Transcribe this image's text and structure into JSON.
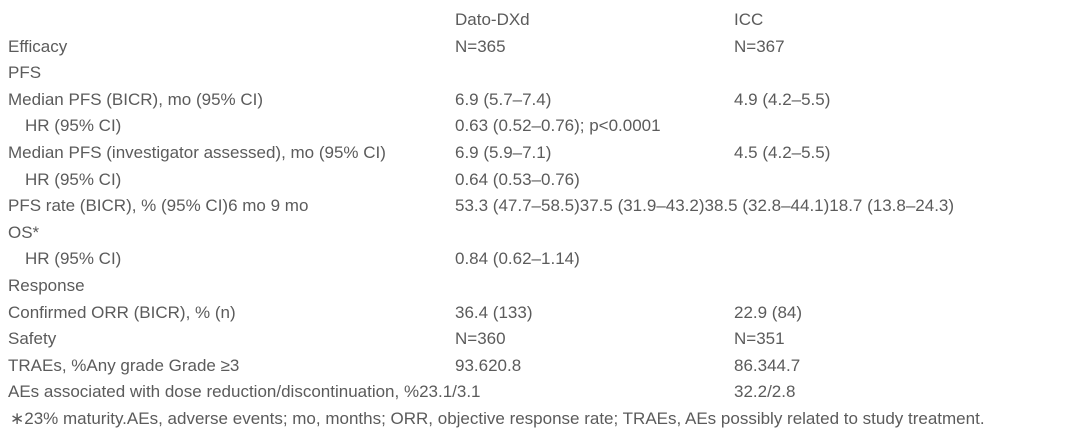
{
  "colors": {
    "background": "#ffffff",
    "text": "#5b5b5b"
  },
  "table": {
    "header": {
      "label": "",
      "dato": "Dato-DXd",
      "icc": "ICC"
    },
    "rows": [
      {
        "label": "Efficacy",
        "dato": "N=365",
        "icc": "N=367"
      },
      {
        "label": "PFS",
        "dato": "",
        "icc": ""
      },
      {
        "label": "Median PFS (BICR), mo (95% CI)",
        "dato": "6.9 (5.7–7.4)",
        "icc": "4.9 (4.2–5.5)"
      },
      {
        "label": "HR (95% CI)",
        "dato": "0.63 (0.52–0.76); p<0.0001",
        "icc": ""
      },
      {
        "label": "Median PFS (investigator assessed), mo (95% CI)",
        "dato": "6.9 (5.9–7.1)",
        "icc": "4.5 (4.2–5.5)"
      },
      {
        "label": "HR (95% CI)",
        "dato": "0.64 (0.53–0.76)",
        "icc": ""
      },
      {
        "label": "PFS rate (BICR), % (95% CI)6 mo 9 mo",
        "dato": "53.3 (47.7–58.5)37.5 (31.9–43.2)38.5 (32.8–44.1)18.7 (13.8–24.3)",
        "icc": ""
      },
      {
        "label": "OS*",
        "dato": "",
        "icc": ""
      },
      {
        "label": "HR (95% CI)",
        "dato": "0.84 (0.62–1.14)",
        "icc": ""
      },
      {
        "label": "Response",
        "dato": "",
        "icc": ""
      },
      {
        "label": "Confirmed ORR (BICR), % (n)",
        "dato": "36.4 (133)",
        "icc": "22.9 (84)"
      },
      {
        "label": "Safety",
        "dato": "N=360",
        "icc": "N=351"
      },
      {
        "label": "TRAEs, %Any grade Grade ≥3",
        "dato": "93.620.8",
        "icc": "86.344.7"
      },
      {
        "label": "AEs associated with dose reduction/discontinuation, %23.1/3.1",
        "dato": "",
        "icc": "32.2/2.8"
      }
    ],
    "footnote": "∗23% maturity.AEs, adverse events; mo, months; ORR, objective response rate; TRAEs, AEs possibly related to study treatment."
  }
}
